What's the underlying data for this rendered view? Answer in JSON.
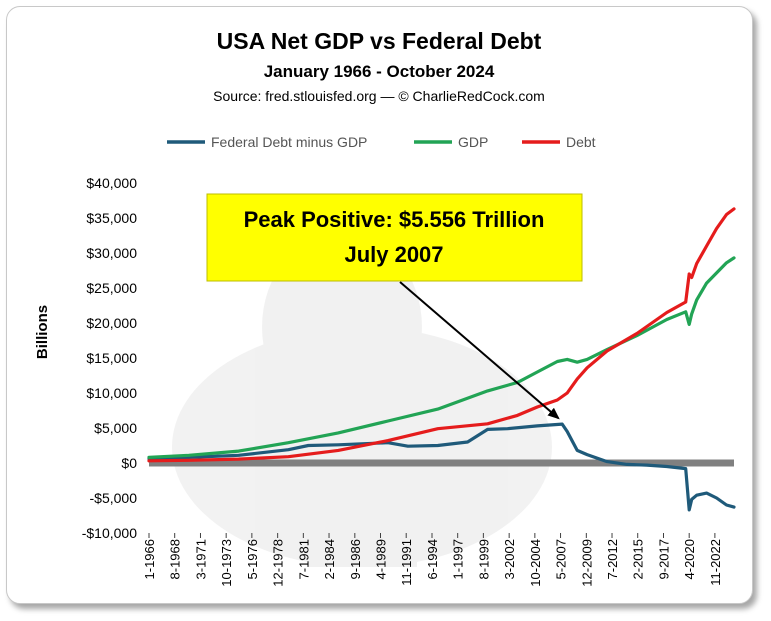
{
  "chart_data": {
    "type": "line",
    "title": "USA Net GDP vs Federal Debt",
    "subtitle": "January 1966 - October 2024",
    "source": "Source: fred.stlouisfed.org — © CharlieRedCock.com",
    "ylabel": "Billions",
    "ylim": [
      -10000,
      40000
    ],
    "ytick_labels": [
      "$40,000",
      "$35,000",
      "$30,000",
      "$25,000",
      "$20,000",
      "$15,000",
      "$10,000",
      "$5,000",
      "$0",
      "-$5,000",
      "-$10,000"
    ],
    "ytick_values": [
      40000,
      35000,
      30000,
      25000,
      20000,
      15000,
      10000,
      5000,
      0,
      -5000,
      -10000
    ],
    "xlim": [
      1966.0,
      2024.75
    ],
    "x_tick_labels": [
      "1-1966",
      "8-1968",
      "3-1971",
      "10-1973",
      "5-1976",
      "12-1978",
      "7-1981",
      "2-1984",
      "9-1986",
      "4-1989",
      "11-1991",
      "6-1994",
      "1-1997",
      "8-1999",
      "3-2002",
      "10-2004",
      "5-2007",
      "12-2009",
      "7-2012",
      "2-2015",
      "9-2017",
      "4-2020",
      "11-2022"
    ],
    "x_tick_values": [
      1966.0,
      1968.58,
      1971.17,
      1973.75,
      1976.33,
      1978.92,
      1981.5,
      1984.08,
      1986.67,
      1989.25,
      1991.83,
      1994.42,
      1997.0,
      1999.58,
      2002.17,
      2004.75,
      2007.33,
      2009.92,
      2012.5,
      2015.08,
      2017.67,
      2020.25,
      2022.83
    ],
    "legend_position": "top",
    "annotation": {
      "line1": "Peak Positive: $5.556 Trillion",
      "line2": "July 2007",
      "target_x": 2007.5,
      "target_y": 5556
    },
    "series": [
      {
        "name": "Federal Debt minus GDP",
        "color": "#1f5a7a",
        "x": [
          1966,
          1970,
          1975,
          1980,
          1982,
          1985,
          1990,
          1992,
          1995,
          1998,
          2000,
          2002,
          2005,
          2007.5,
          2008,
          2009,
          2010,
          2012,
          2014,
          2016,
          2018,
          2019.9,
          2020.25,
          2020.5,
          2021,
          2022,
          2023,
          2024,
          2024.75
        ],
        "y": [
          600,
          800,
          1100,
          1900,
          2500,
          2600,
          2900,
          2400,
          2500,
          3000,
          4800,
          4900,
          5300,
          5556,
          4500,
          1800,
          1200,
          200,
          -200,
          -300,
          -500,
          -800,
          -6700,
          -5200,
          -4600,
          -4300,
          -5000,
          -6000,
          -6300
        ]
      },
      {
        "name": "GDP",
        "color": "#22a455",
        "x": [
          1966,
          1970,
          1975,
          1980,
          1985,
          1990,
          1995,
          2000,
          2003,
          2005,
          2007,
          2008,
          2009,
          2010,
          2012,
          2015,
          2018,
          2019.9,
          2020.25,
          2020.5,
          2021,
          2022,
          2024,
          2024.75
        ],
        "y": [
          800,
          1100,
          1700,
          2900,
          4300,
          6000,
          7700,
          10300,
          11500,
          13000,
          14500,
          14800,
          14400,
          14800,
          16200,
          18200,
          20500,
          21600,
          19800,
          21300,
          23300,
          25700,
          28600,
          29300
        ]
      },
      {
        "name": "Debt",
        "color": "#e51c1c",
        "x": [
          1966,
          1970,
          1975,
          1980,
          1985,
          1990,
          1995,
          2000,
          2003,
          2005,
          2007,
          2008,
          2009,
          2010,
          2012,
          2015,
          2018,
          2019.9,
          2020.25,
          2020.5,
          2021,
          2022,
          2023,
          2024,
          2024.75
        ],
        "y": [
          320,
          380,
          550,
          900,
          1800,
          3200,
          4900,
          5600,
          6800,
          8000,
          9000,
          10000,
          12000,
          13600,
          16000,
          18500,
          21500,
          23000,
          27000,
          26500,
          28500,
          31000,
          33500,
          35500,
          36300
        ]
      }
    ]
  }
}
